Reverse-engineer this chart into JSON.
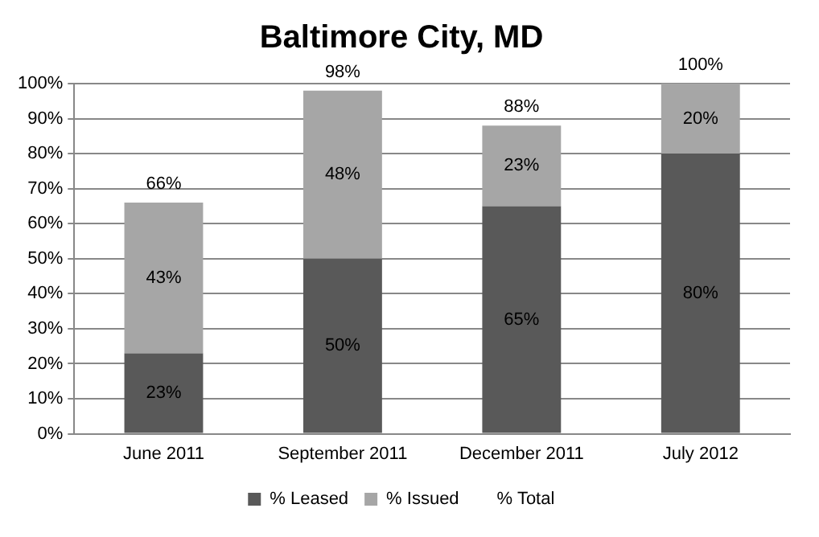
{
  "chart_data": {
    "type": "bar",
    "title": "Baltimore City, MD",
    "categories": [
      "June 2011",
      "September 2011",
      "December 2011",
      "July 2012"
    ],
    "stacked": true,
    "series": [
      {
        "name": "% Leased",
        "color": "#595959",
        "values": [
          23,
          50,
          65,
          80
        ],
        "value_labels": [
          "23%",
          "50%",
          "65%",
          "80%"
        ]
      },
      {
        "name": "% Issued",
        "color": "#a6a6a6",
        "values": [
          43,
          48,
          23,
          20
        ],
        "value_labels": [
          "43%",
          "48%",
          "23%",
          "20%"
        ]
      }
    ],
    "totals": [
      "66%",
      "98%",
      "88%",
      "100%"
    ],
    "annotations": [
      "% Total"
    ],
    "ylim": [
      0,
      100
    ],
    "yticks": [
      {
        "value": 0,
        "label": "0%"
      },
      {
        "value": 10,
        "label": "10%"
      },
      {
        "value": 20,
        "label": "20%"
      },
      {
        "value": 30,
        "label": "30%"
      },
      {
        "value": 40,
        "label": "40%"
      },
      {
        "value": 50,
        "label": "50%"
      },
      {
        "value": 60,
        "label": "60%"
      },
      {
        "value": 70,
        "label": "70%"
      },
      {
        "value": 80,
        "label": "80%"
      },
      {
        "value": 90,
        "label": "90%"
      },
      {
        "value": 100,
        "label": "100%"
      }
    ],
    "grid": "y",
    "legend": "bottom"
  }
}
